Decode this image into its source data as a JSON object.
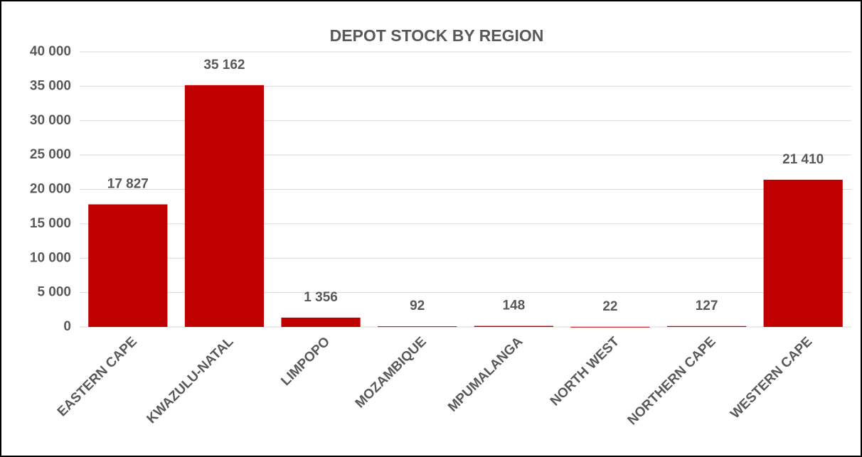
{
  "chart_data": {
    "type": "bar",
    "title": "DEPOT STOCK BY REGION",
    "categories": [
      "EASTERN CAPE",
      "KWAZULU-NATAL",
      "LIMPOPO",
      "MOZAMBIQUE",
      "MPUMALANGA",
      "NORTH WEST",
      "NORTHERN CAPE",
      "WESTERN CAPE"
    ],
    "values": [
      17827,
      35162,
      1356,
      92,
      148,
      22,
      127,
      21410
    ],
    "value_labels": [
      "17 827",
      "35 162",
      "1 356",
      "92",
      "148",
      "22",
      "127",
      "21 410"
    ],
    "color": "#c00000",
    "ylim": [
      0,
      40000
    ],
    "yticks": [
      0,
      {
        "value": 5000,
        "label": "5 000"
      },
      {
        "value": 10000,
        "label": "10 000"
      },
      {
        "value": 15000,
        "label": "15 000"
      },
      {
        "value": 20000,
        "label": "20 000"
      },
      {
        "value": 25000,
        "label": "25 000"
      },
      {
        "value": 30000,
        "label": "30 000"
      },
      {
        "value": 35000,
        "label": "35 000"
      },
      {
        "value": 40000,
        "label": "40 000"
      }
    ],
    "grid": true
  }
}
